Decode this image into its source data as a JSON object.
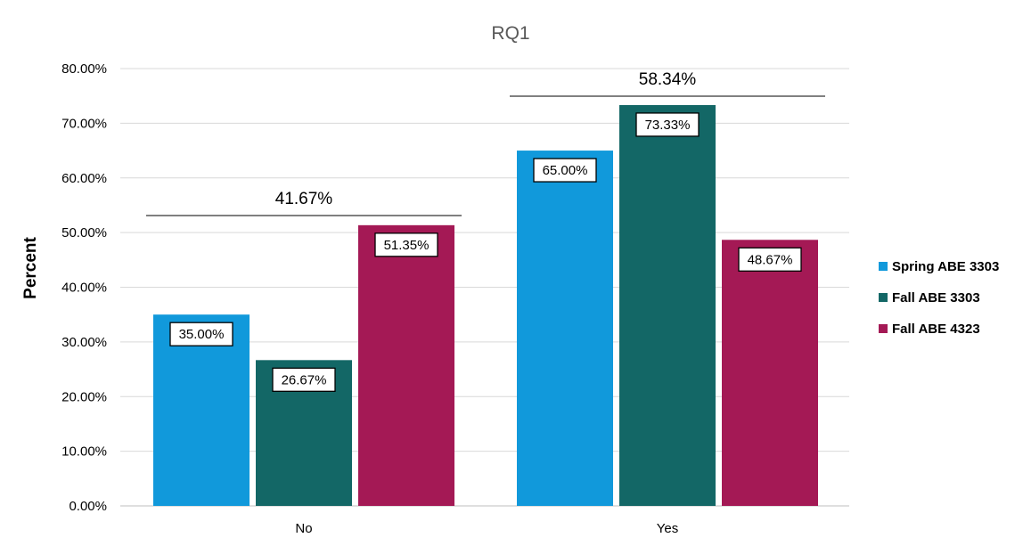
{
  "chart_data": {
    "type": "bar",
    "title": "RQ1",
    "xlabel": "",
    "ylabel": "Percent",
    "categories": [
      "No",
      "Yes"
    ],
    "series": [
      {
        "name": "Spring ABE 3303",
        "color": "#1199DB",
        "values": [
          35.0,
          65.0
        ],
        "labels": [
          "35.00%",
          "65.00%"
        ]
      },
      {
        "name": "Fall ABE 3303",
        "color": "#136766",
        "values": [
          26.67,
          73.33
        ],
        "labels": [
          "26.67%",
          "73.33%"
        ]
      },
      {
        "name": "Fall ABE 4323",
        "color": "#A41955",
        "values": [
          51.35,
          48.67
        ],
        "labels": [
          "51.35%",
          "48.67%"
        ]
      }
    ],
    "group_totals": [
      "41.67%",
      "58.34%"
    ],
    "ylim": [
      0,
      80
    ],
    "yticks": [
      0,
      10,
      20,
      30,
      40,
      50,
      60,
      70,
      80
    ],
    "ytick_labels": [
      "0.00%",
      "10.00%",
      "20.00%",
      "30.00%",
      "40.00%",
      "50.00%",
      "60.00%",
      "70.00%",
      "80.00%"
    ],
    "grid": true,
    "legend_position": "right"
  }
}
